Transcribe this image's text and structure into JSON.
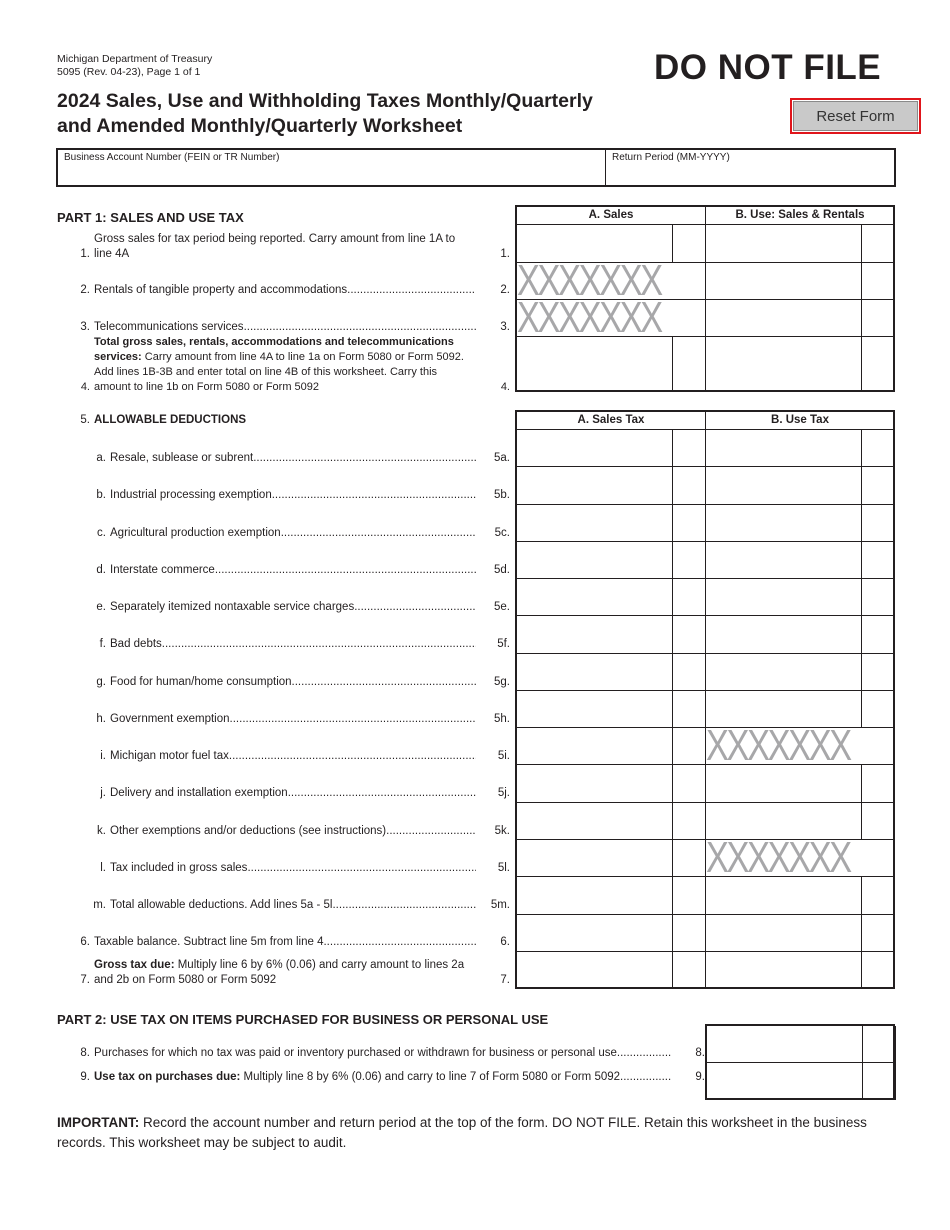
{
  "header": {
    "agency": "Michigan Department of Treasury",
    "form_id": "5095 (Rev. 04-23), Page 1 of 1",
    "do_not_file": "DO NOT FILE",
    "title_line1": "2024 Sales, Use and Withholding Taxes Monthly/Quarterly",
    "title_line2": "and Amended Monthly/Quarterly Worksheet",
    "reset_label": "Reset Form"
  },
  "id_fields": {
    "account_label": "Business Account Number (FEIN or TR Number)",
    "account_value": "",
    "period_label": "Return Period (MM-YYYY)",
    "period_value": ""
  },
  "part1": {
    "heading": "PART 1: SALES AND USE TAX",
    "col_a": "A. Sales",
    "col_b": "B. Use: Sales & Rentals",
    "lines": [
      {
        "num": "1.",
        "text": "Gross sales for tax period being reported. Carry amount from line 1A to line 4A",
        "line": "1."
      },
      {
        "num": "2.",
        "text": "Rentals of tangible property and accommodations",
        "line": "2."
      },
      {
        "num": "3.",
        "text": "Telecommunications services",
        "line": "3."
      },
      {
        "num": "4.",
        "bold": "Total gross sales, rentals, accommodations and telecommunications services:",
        "text": " Carry amount from line 4A to line 1a on Form 5080 or Form 5092. Add lines 1B-3B and enter total on line 4B of this worksheet. Carry this amount to line 1b on Form 5080 or Form 5092",
        "line": "4."
      }
    ]
  },
  "deductions": {
    "num": "5.",
    "heading": "ALLOWABLE DEDUCTIONS",
    "col_a": "A. Sales Tax",
    "col_b": "B. Use Tax",
    "lines": [
      {
        "num": "a.",
        "text": "Resale, sublease or subrent",
        "line": "5a."
      },
      {
        "num": "b.",
        "text": "Industrial processing exemption",
        "line": "5b."
      },
      {
        "num": "c.",
        "text": "Agricultural production exemption",
        "line": "5c."
      },
      {
        "num": "d.",
        "text": "Interstate commerce",
        "line": "5d."
      },
      {
        "num": "e.",
        "text": "Separately itemized nontaxable service charges",
        "line": "5e."
      },
      {
        "num": "f.",
        "text": "Bad debts",
        "line": "5f."
      },
      {
        "num": "g.",
        "text": "Food for human/home consumption",
        "line": "5g."
      },
      {
        "num": "h.",
        "text": "Government exemption",
        "line": "5h."
      },
      {
        "num": "i.",
        "text": "Michigan motor fuel tax",
        "line": "5i."
      },
      {
        "num": "j.",
        "text": "Delivery and installation exemption",
        "line": "5j."
      },
      {
        "num": "k.",
        "text": "Other exemptions and/or deductions (see instructions)",
        "line": "5k."
      },
      {
        "num": "l.",
        "text": "Tax included in gross sales",
        "line": "5l."
      },
      {
        "num": "m.",
        "text": "Total allowable deductions. Add lines 5a - 5l",
        "line": "5m."
      }
    ],
    "line6": {
      "num": "6.",
      "text": "Taxable balance. Subtract line 5m from line 4",
      "line": "6."
    },
    "line7": {
      "num": "7.",
      "bold": "Gross tax due:",
      "text": " Multiply line 6 by 6% (0.06) and carry amount to lines 2a and 2b on Form 5080 or Form 5092",
      "line": "7."
    }
  },
  "part2": {
    "heading": "PART 2: USE TAX ON ITEMS PURCHASED FOR BUSINESS OR PERSONAL USE",
    "lines": [
      {
        "num": "8.",
        "text": "Purchases for which no tax was paid or inventory purchased or withdrawn for business or personal use",
        "line": "8."
      },
      {
        "num": "9.",
        "bold": "Use tax on purchases due:",
        "text": " Multiply line 8 by 6% (0.06) and carry to line 7 of Form 5080 or Form 5092",
        "line": "9."
      }
    ]
  },
  "blocked_mark": "XXXXXXX",
  "important": {
    "bold": "IMPORTANT:",
    "text": " Record the account number and return period at the top of the form. DO NOT FILE. Retain this worksheet in the business records. This worksheet may be subject to audit."
  }
}
